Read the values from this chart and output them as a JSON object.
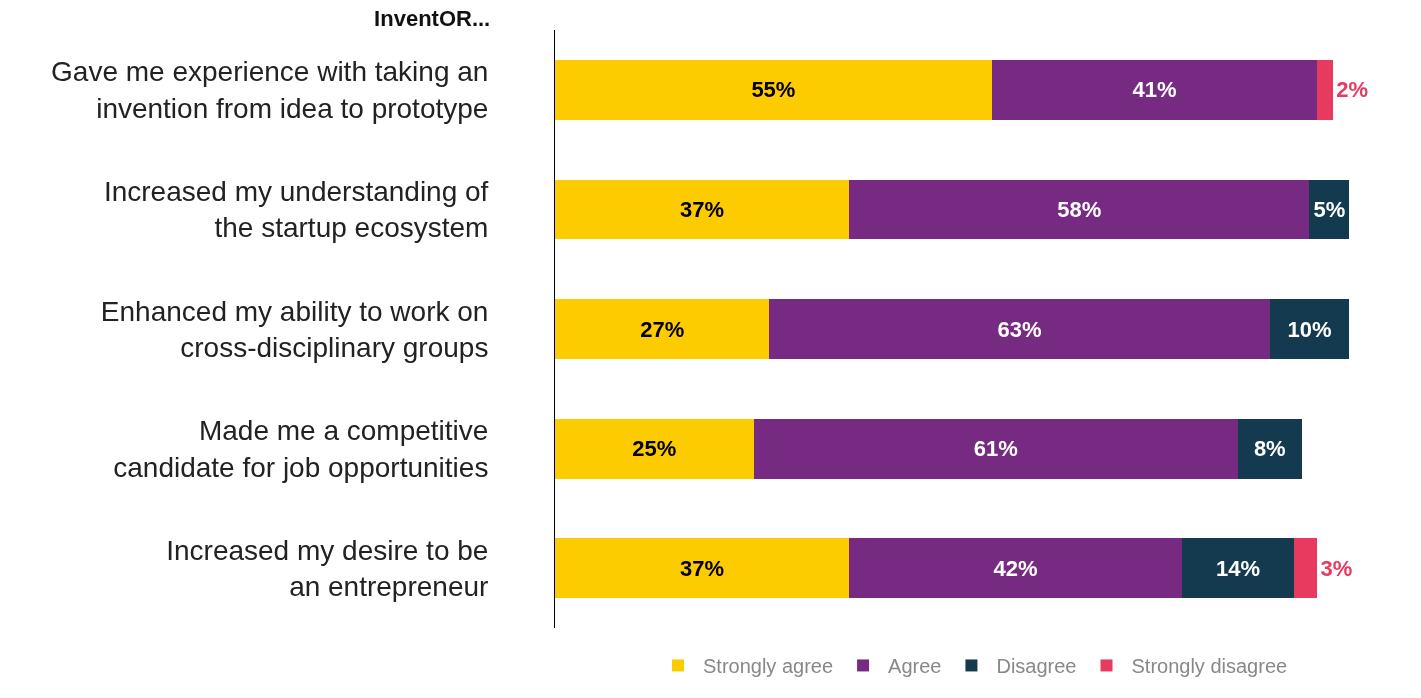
{
  "chart_data": {
    "type": "bar",
    "orientation": "horizontal",
    "stacked": true,
    "title": "InventOR...",
    "categories": [
      "Gave me experience with taking an\ninvention from idea to prototype",
      "Increased my understanding of\nthe startup ecosystem",
      "Enhanced my ability to work on\ncross-disciplinary groups",
      "Made me a competitive\ncandidate for job opportunities",
      "Increased my desire to be\nan entrepreneur"
    ],
    "series": [
      {
        "name": "Strongly agree",
        "color": "#fccb00",
        "values": [
          55,
          37,
          27,
          25,
          37
        ],
        "value_labels": [
          "55%",
          "37%",
          "27%",
          "25%",
          "37%"
        ]
      },
      {
        "name": "Agree",
        "color": "#772a82",
        "values": [
          41,
          58,
          63,
          61,
          42
        ],
        "value_labels": [
          "41%",
          "58%",
          "63%",
          "61%",
          "42%"
        ]
      },
      {
        "name": "Disagree",
        "color": "#133a4f",
        "values": [
          null,
          5,
          10,
          8,
          14
        ],
        "value_labels": [
          null,
          "5%",
          "10%",
          "8%",
          "14%"
        ]
      },
      {
        "name": "Strongly disagree",
        "color": "#e8395e",
        "values": [
          2,
          null,
          null,
          null,
          3
        ],
        "value_labels": [
          "2%",
          null,
          null,
          null,
          "3%"
        ]
      }
    ],
    "tick_labels": "y",
    "grid": false,
    "legend": "bottom"
  }
}
